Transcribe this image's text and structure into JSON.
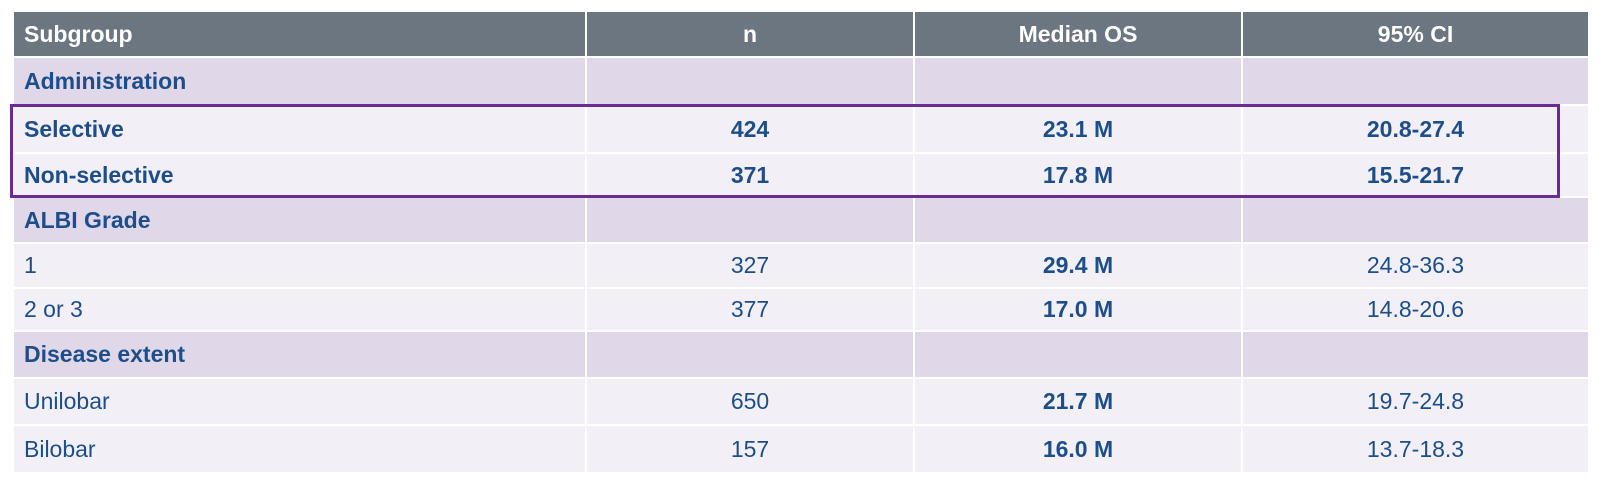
{
  "table": {
    "header": [
      "Subgroup",
      "n",
      "Median OS",
      "95% CI"
    ],
    "rows": [
      [
        "Administration"
      ],
      [
        "Selective",
        424,
        "23.1 M",
        "20.8-27.4"
      ],
      [
        "Non-selective",
        371,
        "17.8 M",
        "15.5-21.7"
      ],
      [
        "ALBI Grade"
      ],
      [
        "1",
        327,
        "29.4 M",
        "24.8-36.3"
      ],
      [
        "2 or 3",
        377,
        "17.0 M",
        "14.8-20.6"
      ],
      [
        "Disease extent"
      ],
      [
        "Unilobar",
        650,
        "21.7 M",
        "19.7-24.8"
      ],
      [
        "Bilobar",
        157,
        "16.0 M",
        "13.7-18.3"
      ]
    ]
  }
}
